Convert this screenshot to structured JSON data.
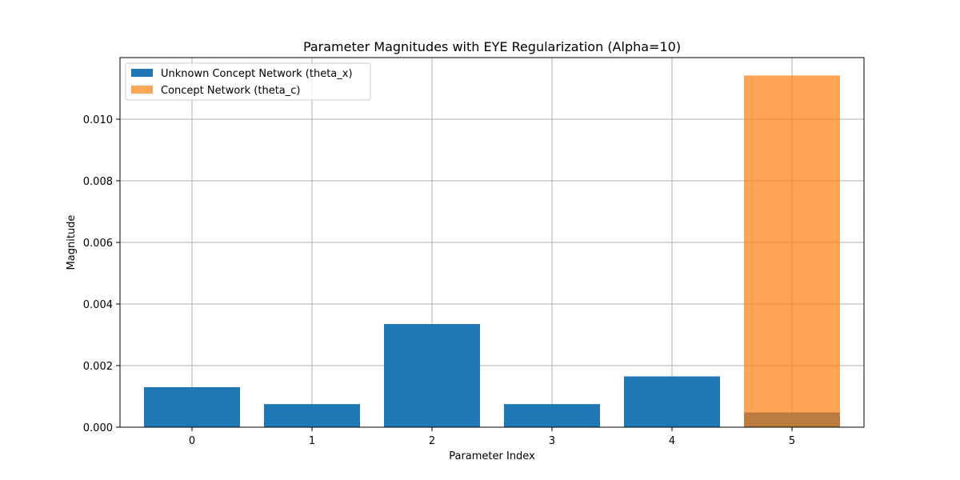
{
  "chart_data": {
    "type": "bar",
    "title": "Parameter Magnitudes with EYE Regularization (Alpha=10)",
    "xlabel": "Parameter Index",
    "ylabel": "Magnitude",
    "categories": [
      "0",
      "1",
      "2",
      "3",
      "4",
      "5"
    ],
    "ylim": [
      0,
      0.012
    ],
    "yticks": [
      0.0,
      0.002,
      0.004,
      0.006,
      0.008,
      0.01
    ],
    "ytick_labels": [
      "0.000",
      "0.002",
      "0.004",
      "0.006",
      "0.008",
      "0.010"
    ],
    "grid": true,
    "legend_position": "top-left",
    "series": [
      {
        "name": "Unknown Concept Network (theta_x)",
        "color": "#1f77b4",
        "opacity": 1,
        "values": [
          0.0013,
          0.00075,
          0.00335,
          0.00075,
          0.00165,
          0.00048
        ]
      },
      {
        "name": "Concept Network (theta_c)",
        "color": "#ff7f0e",
        "opacity": 0.7,
        "values": [
          null,
          null,
          null,
          null,
          null,
          0.01142
        ]
      }
    ]
  }
}
